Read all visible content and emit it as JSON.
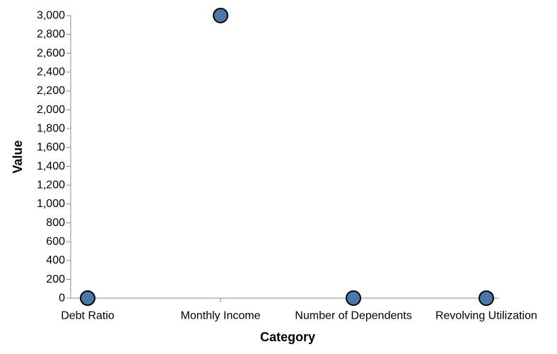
{
  "chart_data": {
    "type": "scatter",
    "xlabel": "Category",
    "ylabel": "Value",
    "categories": [
      "Debt Ratio",
      "Monthly Income",
      "Number of Dependents",
      "Revolving Utilization"
    ],
    "values": [
      0.5,
      3000,
      1,
      0.3
    ],
    "ylim": [
      0,
      3000
    ],
    "yticks": [
      0,
      200,
      400,
      600,
      800,
      1000,
      1200,
      1400,
      1600,
      1800,
      2000,
      2200,
      2400,
      2600,
      2800,
      3000
    ],
    "ytick_labels": [
      "0",
      "200",
      "400",
      "600",
      "800",
      "1,000",
      "1,200",
      "1,400",
      "1,600",
      "1,800",
      "2,000",
      "2,200",
      "2,400",
      "2,600",
      "2,800",
      "3,000"
    ],
    "grid": false,
    "legend": "none",
    "point_color": "#4c78a8",
    "point_stroke": "#000000"
  }
}
